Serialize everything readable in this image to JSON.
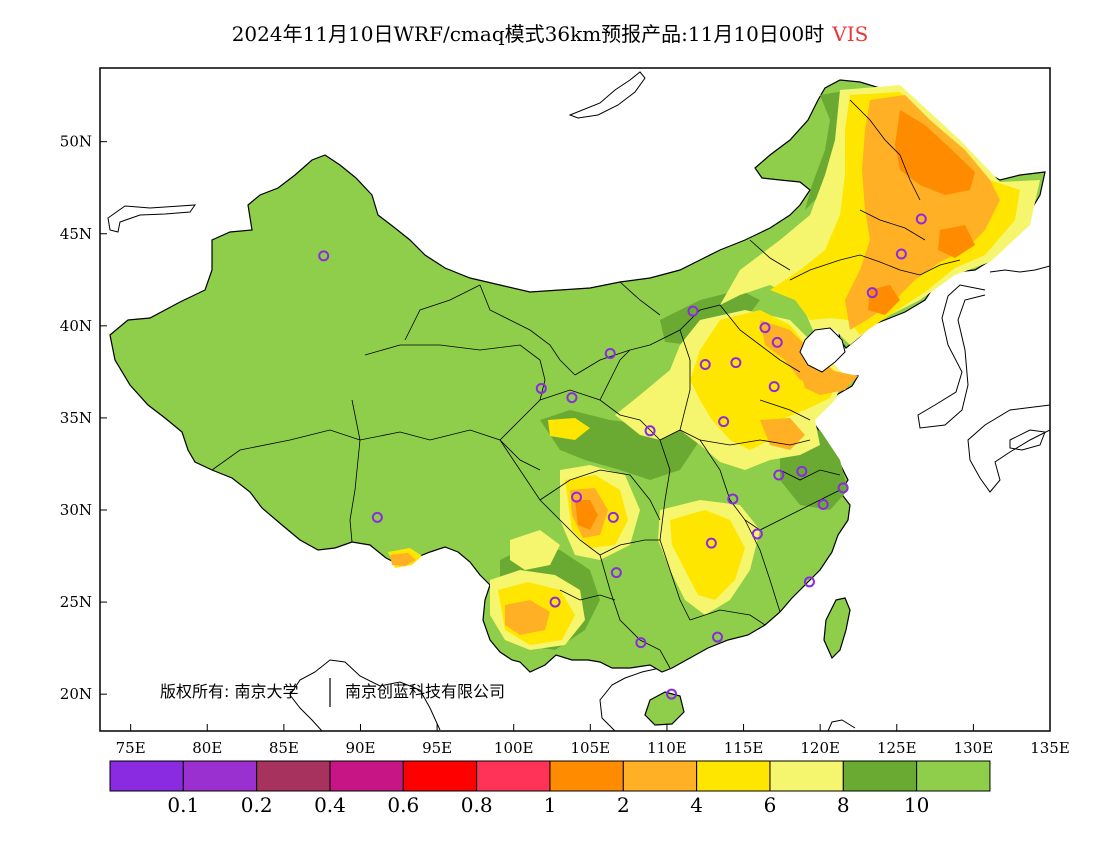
{
  "title": {
    "main": "2024年11月10日WRF/cmaq模式36km预报产品:11月10日00时",
    "variable": "VIS"
  },
  "axes": {
    "lat_labels": [
      "50N",
      "45N",
      "40N",
      "35N",
      "30N",
      "25N",
      "20N"
    ],
    "lon_labels": [
      "75E",
      "80E",
      "85E",
      "90E",
      "95E",
      "100E",
      "105E",
      "110E",
      "115E",
      "120E",
      "125E",
      "130E",
      "135E"
    ]
  },
  "copyright": {
    "org1": "版权所有: 南京大学",
    "org2": "南京创蓝科技有限公司"
  },
  "legend": {
    "colors": [
      "#8a2be2",
      "#9b30d0",
      "#a8325e",
      "#c71585",
      "#ff0000",
      "#ff3358",
      "#ff8c00",
      "#ffb025",
      "#ffe600",
      "#f5f56e",
      "#6aaa32",
      "#8fce4a"
    ],
    "labels": [
      "0.1",
      "0.2",
      "0.4",
      "0.6",
      "0.8",
      "1",
      "2",
      "4",
      "6",
      "8",
      "10"
    ]
  },
  "map_colors": {
    "base": "#8fce4a",
    "dark_green": "#6aaa32",
    "light_yellow": "#f5f56e",
    "yellow": "#ffe600",
    "light_orange": "#ffb025",
    "orange": "#ff8c00",
    "station": "#8a2be2"
  },
  "stations": [
    {
      "lon": 87.6,
      "lat": 43.8
    },
    {
      "lon": 91.1,
      "lat": 29.6
    },
    {
      "lon": 101.8,
      "lat": 36.6
    },
    {
      "lon": 103.8,
      "lat": 36.1
    },
    {
      "lon": 106.3,
      "lat": 38.5
    },
    {
      "lon": 111.7,
      "lat": 40.8
    },
    {
      "lon": 108.9,
      "lat": 34.3
    },
    {
      "lon": 112.5,
      "lat": 37.9
    },
    {
      "lon": 114.5,
      "lat": 38.0
    },
    {
      "lon": 116.4,
      "lat": 39.9
    },
    {
      "lon": 117.2,
      "lat": 39.1
    },
    {
      "lon": 117.0,
      "lat": 36.7
    },
    {
      "lon": 113.7,
      "lat": 34.8
    },
    {
      "lon": 117.3,
      "lat": 31.9
    },
    {
      "lon": 118.8,
      "lat": 32.1
    },
    {
      "lon": 121.5,
      "lat": 31.2
    },
    {
      "lon": 120.2,
      "lat": 30.3
    },
    {
      "lon": 114.3,
      "lat": 30.6
    },
    {
      "lon": 115.9,
      "lat": 28.7
    },
    {
      "lon": 112.9,
      "lat": 28.2
    },
    {
      "lon": 104.1,
      "lat": 30.7
    },
    {
      "lon": 106.5,
      "lat": 29.6
    },
    {
      "lon": 106.7,
      "lat": 26.6
    },
    {
      "lon": 102.7,
      "lat": 25.0
    },
    {
      "lon": 108.3,
      "lat": 22.8
    },
    {
      "lon": 113.3,
      "lat": 23.1
    },
    {
      "lon": 119.3,
      "lat": 26.1
    },
    {
      "lon": 110.3,
      "lat": 20.0
    },
    {
      "lon": 123.4,
      "lat": 41.8
    },
    {
      "lon": 125.3,
      "lat": 43.9
    },
    {
      "lon": 126.6,
      "lat": 45.8
    }
  ]
}
